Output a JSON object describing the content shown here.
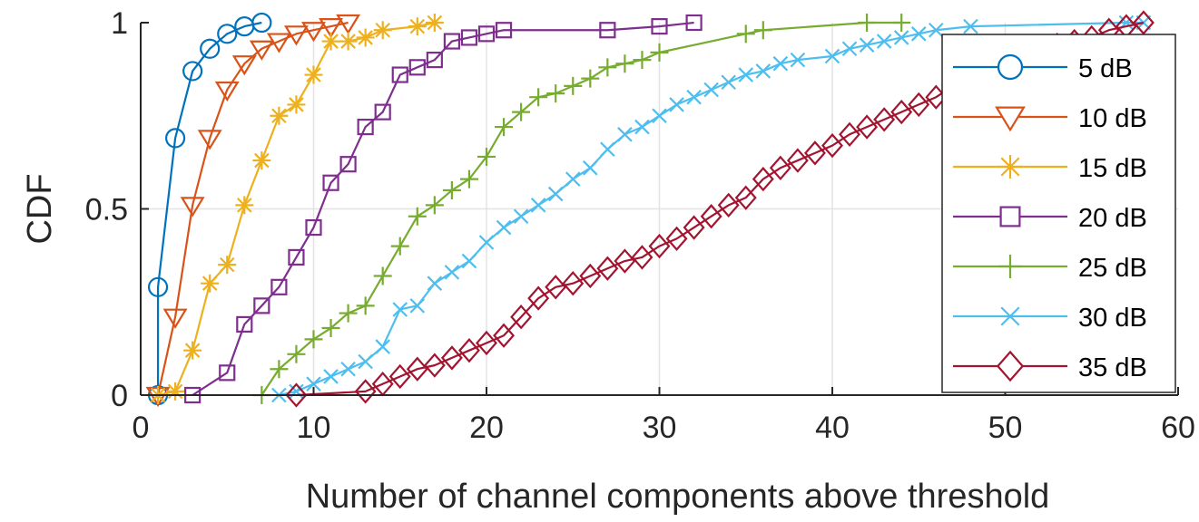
{
  "chart_data": {
    "type": "line",
    "title": "",
    "xlabel": "Number of channel components above threshold",
    "ylabel": "CDF",
    "xlim": [
      0,
      60
    ],
    "ylim": [
      0,
      1
    ],
    "xticks": [
      "0",
      "10",
      "20",
      "30",
      "40",
      "50",
      "60"
    ],
    "yticks": [
      "0",
      "0.5",
      "1"
    ],
    "grid": true,
    "legend_position": "right",
    "series": [
      {
        "name": "5 dB",
        "color": "#0072BD",
        "marker": "circle",
        "x": [
          1,
          1,
          2,
          3,
          4,
          5,
          6,
          7
        ],
        "y": [
          0,
          0.29,
          0.69,
          0.87,
          0.93,
          0.97,
          0.99,
          1.0
        ]
      },
      {
        "name": "10 dB",
        "color": "#D95319",
        "marker": "triangle-down",
        "x": [
          1,
          2,
          3,
          4,
          5,
          6,
          7,
          8,
          9,
          10,
          11,
          12
        ],
        "y": [
          0,
          0.21,
          0.51,
          0.69,
          0.82,
          0.89,
          0.93,
          0.95,
          0.97,
          0.98,
          0.99,
          1.0
        ]
      },
      {
        "name": "15 dB",
        "color": "#EDB120",
        "marker": "asterisk",
        "x": [
          1,
          2,
          3,
          4,
          5,
          6,
          7,
          8,
          9,
          10,
          11,
          12,
          13,
          14,
          16,
          17
        ],
        "y": [
          0,
          0.01,
          0.12,
          0.3,
          0.35,
          0.51,
          0.63,
          0.75,
          0.78,
          0.86,
          0.95,
          0.95,
          0.96,
          0.98,
          0.99,
          1.0
        ]
      },
      {
        "name": "20 dB",
        "color": "#7E2F8E",
        "marker": "square",
        "x": [
          3,
          5,
          6,
          7,
          8,
          9,
          10,
          11,
          12,
          13,
          14,
          15,
          16,
          17,
          18,
          19,
          20,
          21,
          27,
          30,
          32
        ],
        "y": [
          0,
          0.06,
          0.19,
          0.24,
          0.29,
          0.37,
          0.45,
          0.57,
          0.62,
          0.72,
          0.76,
          0.86,
          0.88,
          0.9,
          0.95,
          0.96,
          0.97,
          0.98,
          0.98,
          0.99,
          1.0
        ]
      },
      {
        "name": "25 dB",
        "color": "#77AC30",
        "marker": "plus",
        "x": [
          7,
          8,
          9,
          10,
          11,
          12,
          13,
          14,
          15,
          16,
          17,
          18,
          19,
          20,
          21,
          22,
          23,
          24,
          25,
          26,
          27,
          28,
          29,
          30,
          35,
          36,
          42,
          44
        ],
        "y": [
          0,
          0.07,
          0.11,
          0.15,
          0.18,
          0.22,
          0.24,
          0.32,
          0.4,
          0.48,
          0.51,
          0.55,
          0.58,
          0.64,
          0.72,
          0.76,
          0.8,
          0.81,
          0.83,
          0.85,
          0.88,
          0.89,
          0.9,
          0.92,
          0.97,
          0.98,
          1.0,
          1.0
        ]
      },
      {
        "name": "30 dB",
        "color": "#4DBEEE",
        "marker": "x",
        "x": [
          8,
          9,
          10,
          11,
          12,
          13,
          14,
          15,
          16,
          17,
          18,
          19,
          20,
          21,
          22,
          23,
          24,
          25,
          26,
          27,
          28,
          29,
          30,
          31,
          32,
          33,
          34,
          35,
          36,
          37,
          38,
          40,
          41,
          42,
          43,
          44,
          45,
          46,
          48,
          57,
          58
        ],
        "y": [
          0,
          0.01,
          0.03,
          0.05,
          0.07,
          0.09,
          0.13,
          0.23,
          0.24,
          0.3,
          0.33,
          0.36,
          0.41,
          0.45,
          0.48,
          0.51,
          0.54,
          0.58,
          0.61,
          0.66,
          0.7,
          0.72,
          0.75,
          0.78,
          0.8,
          0.82,
          0.84,
          0.86,
          0.87,
          0.89,
          0.9,
          0.91,
          0.93,
          0.94,
          0.95,
          0.96,
          0.97,
          0.98,
          0.99,
          1.0,
          1.0
        ]
      },
      {
        "name": "35 dB",
        "color": "#A2142F",
        "marker": "diamond",
        "x": [
          9,
          13,
          14,
          15,
          16,
          17,
          18,
          19,
          20,
          21,
          22,
          23,
          24,
          25,
          26,
          27,
          28,
          29,
          30,
          31,
          32,
          33,
          34,
          35,
          36,
          37,
          38,
          39,
          40,
          41,
          42,
          43,
          44,
          45,
          46,
          47,
          48,
          49,
          50,
          51,
          52,
          53,
          54,
          55,
          56,
          57,
          58
        ],
        "y": [
          0,
          0.01,
          0.03,
          0.05,
          0.07,
          0.08,
          0.1,
          0.12,
          0.14,
          0.16,
          0.21,
          0.26,
          0.29,
          0.3,
          0.32,
          0.34,
          0.36,
          0.37,
          0.4,
          0.42,
          0.45,
          0.48,
          0.51,
          0.53,
          0.58,
          0.61,
          0.63,
          0.65,
          0.67,
          0.7,
          0.72,
          0.74,
          0.76,
          0.78,
          0.8,
          0.83,
          0.85,
          0.87,
          0.89,
          0.9,
          0.92,
          0.94,
          0.95,
          0.96,
          0.98,
          0.99,
          1.0
        ]
      }
    ]
  }
}
